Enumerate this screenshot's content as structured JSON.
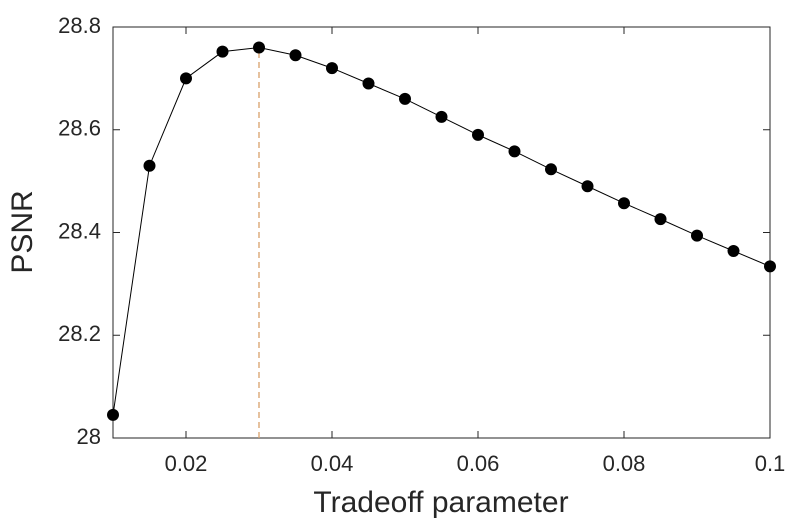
{
  "chart_data": {
    "type": "line",
    "x_label": "Tradeoff parameter",
    "y_label": "PSNR",
    "x": [
      0.01,
      0.015,
      0.02,
      0.025,
      0.03,
      0.035,
      0.04,
      0.045,
      0.05,
      0.055,
      0.06,
      0.065,
      0.07,
      0.075,
      0.08,
      0.085,
      0.09,
      0.095,
      0.1
    ],
    "series": [
      {
        "color": "#000000",
        "values": [
          28.045,
          28.53,
          28.7,
          28.752,
          28.76,
          28.745,
          28.72,
          28.69,
          28.66,
          28.625,
          28.59,
          28.558,
          28.523,
          28.49,
          28.457,
          28.426,
          28.394,
          28.364,
          28.334
        ]
      }
    ],
    "vline": {
      "x": 0.03,
      "color": "#d9a06b"
    },
    "xlim": [
      0.01,
      0.1
    ],
    "xticks": [
      0.02,
      0.04,
      0.06,
      0.08,
      0.1
    ],
    "ylim": [
      28,
      28.8
    ],
    "yticks": [
      28,
      28.2,
      28.4,
      28.6,
      28.8
    ]
  }
}
